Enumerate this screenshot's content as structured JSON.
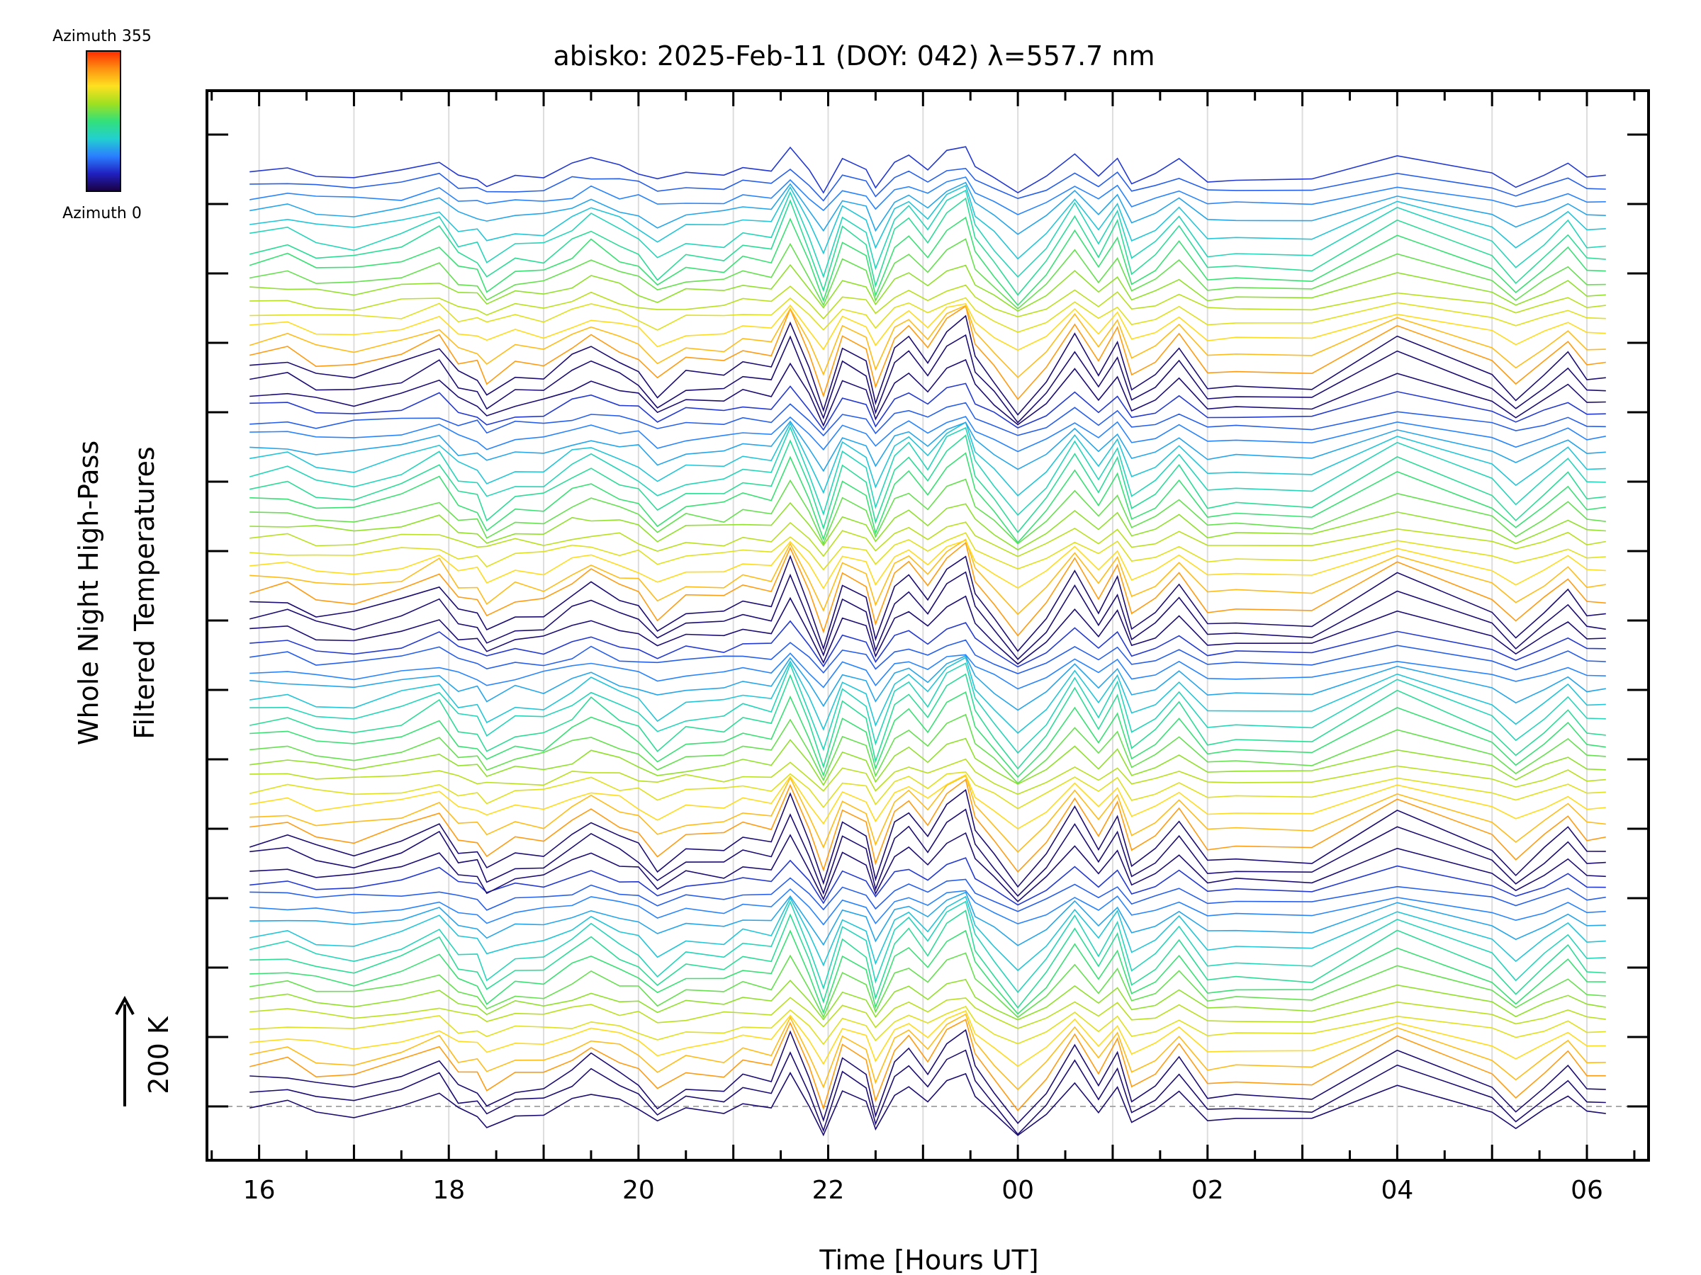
{
  "chart_data": {
    "type": "line",
    "title": "abisko: 2025-Feb-11 (DOY: 042) λ=557.7 nm",
    "xlabel": "Time [Hours UT]",
    "ylabel_line1": "Whole Night High-Pass",
    "ylabel_line2": "Filtered Temperatures",
    "scale_label": "200 K",
    "xticks": [
      "16",
      "18",
      "20",
      "22",
      "00",
      "02",
      "04",
      "06"
    ],
    "xrange_hours": [
      15.45,
      30.65
    ],
    "colorbar": {
      "top_label": "Azimuth 355",
      "bottom_label": "Azimuth 0",
      "stops": [
        "#1a0040",
        "#2020c0",
        "#2a7fff",
        "#22d0d0",
        "#33e07a",
        "#a0e020",
        "#ffe020",
        "#ff9010",
        "#ff2a00"
      ]
    },
    "grid": true,
    "legend": "top-left colorbar",
    "series_count": 72,
    "stacked": true,
    "shape_nodes": [
      {
        "h": 15.9,
        "v": 0.0
      },
      {
        "h": 16.3,
        "v": 0.1
      },
      {
        "h": 16.6,
        "v": -0.1
      },
      {
        "h": 17.0,
        "v": -0.15
      },
      {
        "h": 17.5,
        "v": 0.05
      },
      {
        "h": 17.9,
        "v": 0.35
      },
      {
        "h": 18.1,
        "v": -0.1
      },
      {
        "h": 18.3,
        "v": -0.15
      },
      {
        "h": 18.4,
        "v": -0.45
      },
      {
        "h": 18.7,
        "v": -0.15
      },
      {
        "h": 19.0,
        "v": -0.15
      },
      {
        "h": 19.3,
        "v": 0.15
      },
      {
        "h": 19.5,
        "v": 0.35
      },
      {
        "h": 19.8,
        "v": 0.1
      },
      {
        "h": 20.0,
        "v": -0.05
      },
      {
        "h": 20.2,
        "v": -0.4
      },
      {
        "h": 20.5,
        "v": -0.1
      },
      {
        "h": 20.9,
        "v": -0.1
      },
      {
        "h": 21.1,
        "v": 0.1
      },
      {
        "h": 21.4,
        "v": 0.0
      },
      {
        "h": 21.6,
        "v": 0.75
      },
      {
        "h": 21.8,
        "v": 0.0
      },
      {
        "h": 21.95,
        "v": -0.65
      },
      {
        "h": 22.15,
        "v": 0.35
      },
      {
        "h": 22.4,
        "v": 0.1
      },
      {
        "h": 22.5,
        "v": -0.55
      },
      {
        "h": 22.7,
        "v": 0.3
      },
      {
        "h": 22.85,
        "v": 0.5
      },
      {
        "h": 23.05,
        "v": 0.1
      },
      {
        "h": 23.25,
        "v": 0.6
      },
      {
        "h": 23.45,
        "v": 0.8
      },
      {
        "h": 23.55,
        "v": 0.2
      },
      {
        "h": 23.75,
        "v": -0.2
      },
      {
        "h": 24.0,
        "v": -0.7
      },
      {
        "h": 24.3,
        "v": -0.2
      },
      {
        "h": 24.6,
        "v": 0.55
      },
      {
        "h": 24.85,
        "v": -0.1
      },
      {
        "h": 25.05,
        "v": 0.45
      },
      {
        "h": 25.2,
        "v": -0.35
      },
      {
        "h": 25.45,
        "v": -0.1
      },
      {
        "h": 25.7,
        "v": 0.35
      },
      {
        "h": 26.0,
        "v": -0.3
      },
      {
        "h": 26.3,
        "v": -0.25
      },
      {
        "h": 27.1,
        "v": -0.3
      },
      {
        "h": 28.0,
        "v": 0.5
      },
      {
        "h": 29.0,
        "v": -0.1
      },
      {
        "h": 29.25,
        "v": -0.5
      },
      {
        "h": 29.55,
        "v": -0.1
      },
      {
        "h": 29.8,
        "v": 0.25
      },
      {
        "h": 30.0,
        "v": -0.15
      },
      {
        "h": 30.2,
        "v": -0.15
      }
    ]
  }
}
